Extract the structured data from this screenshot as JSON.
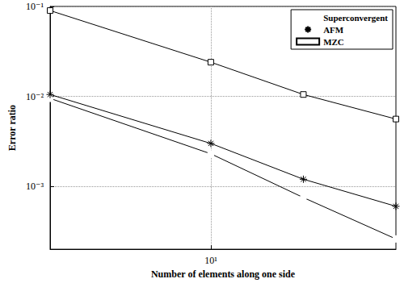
{
  "chart_data": {
    "type": "line",
    "x_label": "Number of elements along one side",
    "y_label": "Error ratio",
    "log": true,
    "grid": true,
    "legend": "top-right",
    "x": [
      3,
      10,
      20,
      40
    ],
    "xlim": [
      3,
      40
    ],
    "xticks": [
      {
        "value": 10,
        "label": "10¹"
      }
    ],
    "ylim": [
      0.0002,
      0.1
    ],
    "yticks": [
      {
        "value": 0.001,
        "label": "10⁻³"
      },
      {
        "value": 0.01,
        "label": "10⁻²"
      },
      {
        "value": 0.1,
        "label": "10⁻¹"
      }
    ],
    "series": [
      {
        "name": "Superconvergent",
        "color": "#000000",
        "marker": "circle",
        "line_style": "solid",
        "values": [
          0.0095,
          0.0023,
          0.00075,
          0.00026
        ]
      },
      {
        "name": "AFM",
        "color": "#000000",
        "marker": "asterisk",
        "line_style": "solid",
        "values": [
          0.0105,
          0.003,
          0.0012,
          0.0006
        ]
      },
      {
        "name": "MZC",
        "color": "#000000",
        "marker": "square",
        "line_style": "solid",
        "values": [
          0.09,
          0.024,
          0.0105,
          0.0056
        ]
      }
    ]
  }
}
